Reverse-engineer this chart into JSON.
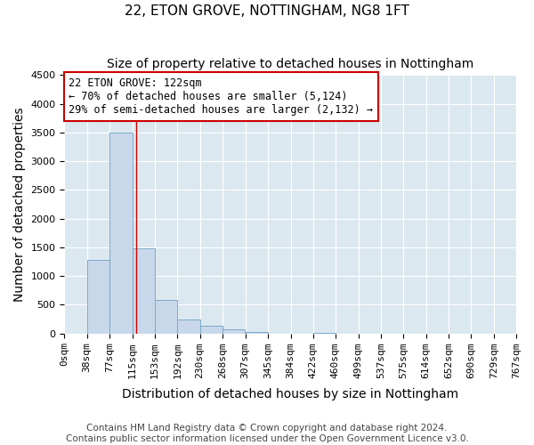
{
  "title": "22, ETON GROVE, NOTTINGHAM, NG8 1FT",
  "subtitle": "Size of property relative to detached houses in Nottingham",
  "xlabel": "Distribution of detached houses by size in Nottingham",
  "ylabel": "Number of detached properties",
  "bar_left_edges": [
    0,
    38,
    77,
    115,
    153,
    192,
    230,
    268,
    307,
    345,
    384,
    422,
    460,
    499,
    537,
    575,
    614,
    652,
    690,
    729
  ],
  "bar_heights": [
    0,
    1280,
    3500,
    1480,
    580,
    240,
    130,
    70,
    20,
    0,
    0,
    10,
    0,
    0,
    0,
    0,
    0,
    0,
    0,
    0
  ],
  "bin_width": 38,
  "bar_color": "#c8d8ea",
  "bar_edge_color": "#7aaac8",
  "property_line_x": 122,
  "ylim": [
    0,
    4500
  ],
  "yticks": [
    0,
    500,
    1000,
    1500,
    2000,
    2500,
    3000,
    3500,
    4000,
    4500
  ],
  "xtick_labels": [
    "0sqm",
    "38sqm",
    "77sqm",
    "115sqm",
    "153sqm",
    "192sqm",
    "230sqm",
    "268sqm",
    "307sqm",
    "345sqm",
    "384sqm",
    "422sqm",
    "460sqm",
    "499sqm",
    "537sqm",
    "575sqm",
    "614sqm",
    "652sqm",
    "690sqm",
    "729sqm",
    "767sqm"
  ],
  "annotation_title": "22 ETON GROVE: 122sqm",
  "annotation_line1": "← 70% of detached houses are smaller (5,124)",
  "annotation_line2": "29% of semi-detached houses are larger (2,132) →",
  "annotation_box_color": "#ffffff",
  "annotation_box_edge_color": "#cc0000",
  "footer1": "Contains HM Land Registry data © Crown copyright and database right 2024.",
  "footer2": "Contains public sector information licensed under the Open Government Licence v3.0.",
  "background_color": "#ffffff",
  "plot_background_color": "#dce8f0",
  "grid_color": "#ffffff",
  "title_fontsize": 11,
  "subtitle_fontsize": 10,
  "axis_label_fontsize": 10,
  "tick_fontsize": 8,
  "annotation_fontsize": 8.5,
  "footer_fontsize": 7.5
}
